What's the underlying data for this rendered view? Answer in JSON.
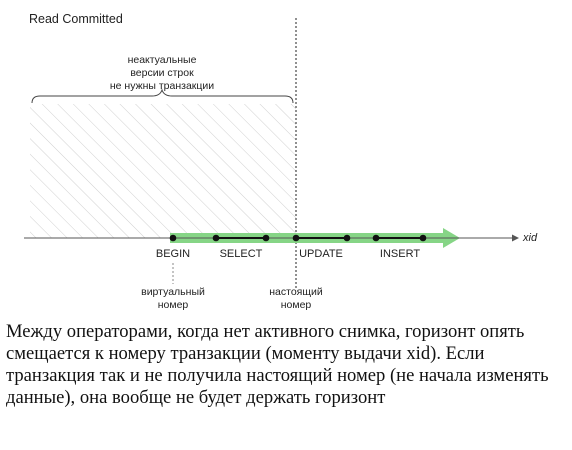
{
  "diagram": {
    "title": "Read Committed",
    "brace_label": [
      "неактуальные",
      "версии строк",
      "не нужны транзакции"
    ],
    "axis_label": "xid",
    "events": {
      "begin": "BEGIN",
      "select": "SELECT",
      "update": "UPDATE",
      "insert": "INSERT"
    },
    "markers": {
      "virtual_number": [
        "виртуальный",
        "номер"
      ],
      "real_number": [
        "настоящий",
        "номер"
      ]
    },
    "colors": {
      "arrow": "#86d586",
      "axis": "#555555",
      "hatch": "#cccccc",
      "points": "#111111"
    }
  },
  "caption": "Между операторами, когда нет активного снимка, горизонт опять смещается к номеру транзакции (моменту выдачи xid). Если транзакция так и не получила настоящий номер (не начала изменять данные), она вообще не будет держать горизонт"
}
